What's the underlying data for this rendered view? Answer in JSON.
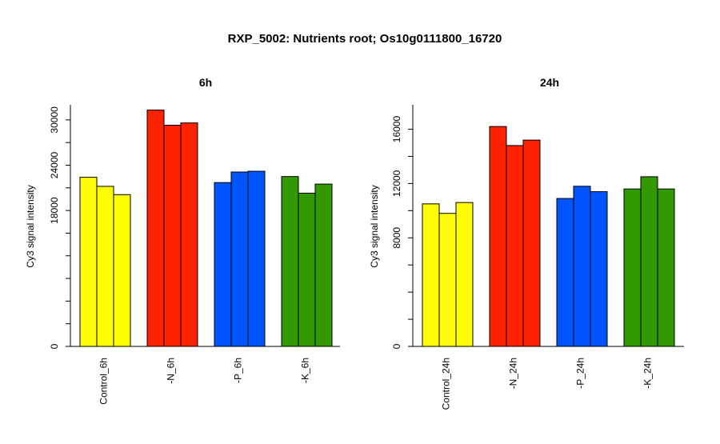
{
  "title": "RXP_5002: Nutrients root; Os10g0111800_16720",
  "chart_data": [
    {
      "type": "bar",
      "title": "6h",
      "ylabel": "Cy3 signal intensity",
      "ylim": [
        0,
        32000
      ],
      "yticks": [
        0,
        18000,
        24000,
        30000
      ],
      "grid": false,
      "groups": [
        {
          "label": "Control_6h",
          "color": "#ffff00",
          "values": [
            22400,
            21200,
            20100
          ]
        },
        {
          "label": "-N_6h",
          "color": "#ff2200",
          "values": [
            31300,
            29300,
            29600
          ]
        },
        {
          "label": "-P_6h",
          "color": "#0055ff",
          "values": [
            21700,
            23100,
            23200
          ]
        },
        {
          "label": "-K_6h",
          "color": "#339900",
          "values": [
            22500,
            20300,
            21500
          ]
        }
      ]
    },
    {
      "type": "bar",
      "title": "24h",
      "ylabel": "Cy3 signal intensity",
      "ylim": [
        0,
        17800
      ],
      "yticks": [
        0,
        8000,
        12000,
        16000
      ],
      "grid": false,
      "groups": [
        {
          "label": "Control_24h",
          "color": "#ffff00",
          "values": [
            10500,
            9800,
            10600
          ]
        },
        {
          "label": "-N_24h",
          "color": "#ff2200",
          "values": [
            16200,
            14800,
            15200
          ]
        },
        {
          "label": "-P_24h",
          "color": "#0055ff",
          "values": [
            10900,
            11800,
            11400
          ]
        },
        {
          "label": "-K_24h",
          "color": "#339900",
          "values": [
            11600,
            12500,
            11600
          ]
        }
      ]
    }
  ]
}
